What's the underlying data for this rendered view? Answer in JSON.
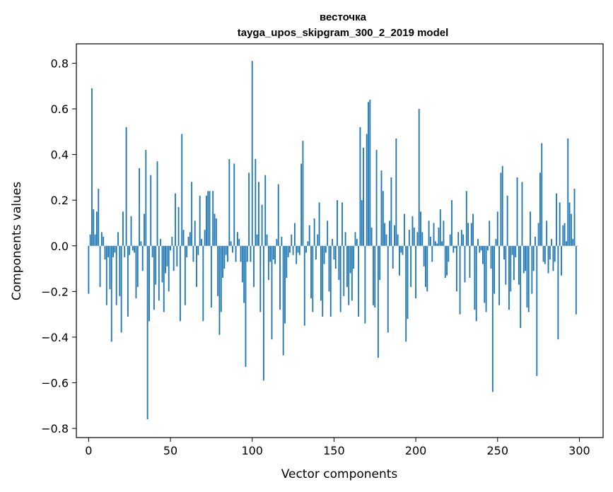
{
  "chart_data": {
    "type": "bar",
    "title": "весточка",
    "subtitle": "tayga_upos_skipgram_300_2_2019 model",
    "xlabel": "Vector components",
    "ylabel": "Components values",
    "xlim": [
      -7.5,
      314.5
    ],
    "ylim": [
      -0.84,
      0.885
    ],
    "xticks": [
      0,
      50,
      100,
      150,
      200,
      250,
      300
    ],
    "xtick_labels": [
      "0",
      "50",
      "100",
      "150",
      "200",
      "250",
      "300"
    ],
    "yticks": [
      -0.8,
      -0.6,
      -0.4,
      -0.2,
      0.0,
      0.2,
      0.4,
      0.6,
      0.8
    ],
    "ytick_labels": [
      "−0.8",
      "−0.6",
      "−0.4",
      "−0.2",
      "0.0",
      "0.2",
      "0.4",
      "0.6",
      "0.8"
    ],
    "grid": false,
    "bar_color": "#1f77b4",
    "series": [
      {
        "values": [
          -0.21,
          0.05,
          0.69,
          0.16,
          0.05,
          0.15,
          0.25,
          -0.18,
          0.06,
          0.04,
          -0.06,
          -0.26,
          -0.05,
          -0.19,
          -0.42,
          -0.05,
          -0.03,
          -0.26,
          0.06,
          -0.22,
          -0.38,
          0.15,
          -0.05,
          0.52,
          -0.31,
          -0.04,
          0.13,
          -0.02,
          -0.03,
          -0.23,
          -0.18,
          0.34,
          0.02,
          -0.11,
          0.14,
          0.42,
          -0.76,
          -0.33,
          0.31,
          -0.05,
          -0.28,
          -0.17,
          0.37,
          -0.24,
          0.03,
          -0.16,
          -0.29,
          -0.12,
          -0.09,
          -0.2,
          -0.02,
          0.04,
          -0.11,
          0.23,
          -0.09,
          0.17,
          -0.33,
          0.49,
          0.07,
          -0.26,
          -0.05,
          0.04,
          0.06,
          0.28,
          -0.07,
          0.11,
          -0.18,
          -0.04,
          0.22,
          0.03,
          -0.33,
          0.07,
          0.22,
          0.24,
          0.24,
          -0.27,
          0.24,
          0.14,
          0.12,
          -0.22,
          -0.39,
          -0.29,
          -0.14,
          -0.1,
          -0.04,
          -0.07,
          0.38,
          0.02,
          -0.03,
          0.36,
          -0.07,
          0.06,
          0.03,
          -0.07,
          -0.16,
          -0.25,
          -0.53,
          -0.07,
          0.32,
          -0.07,
          0.81,
          -0.18,
          0.38,
          0.05,
          0.28,
          -0.29,
          0.18,
          -0.59,
          0.31,
          0.05,
          -0.15,
          -0.07,
          -0.41,
          -0.06,
          -0.08,
          0.03,
          0.27,
          -0.28,
          0.04,
          -0.48,
          -0.34,
          -0.14,
          -0.05,
          -0.03,
          0.05,
          -0.04,
          0.1,
          -0.08,
          -0.03,
          -0.04,
          0.36,
          0.46,
          -0.35,
          -0.03,
          0.02,
          0.09,
          -0.23,
          -0.29,
          0.12,
          -0.06,
          0.05,
          0.19,
          -0.24,
          -0.31,
          -0.08,
          -0.03,
          0.11,
          -0.2,
          -0.31,
          0.03,
          -0.06,
          -0.1,
          0.2,
          -0.15,
          -0.29,
          0.19,
          -0.22,
          0.06,
          -0.18,
          -0.26,
          -0.12,
          -0.24,
          -0.1,
          0.06,
          0.03,
          -0.31,
          0.52,
          0.2,
          0.43,
          -0.34,
          0.49,
          0.63,
          0.64,
          0.08,
          -0.26,
          -0.27,
          0.42,
          -0.49,
          -0.15,
          0.33,
          0.24,
          0.1,
          0.05,
          -0.38,
          0.11,
          0.3,
          -0.1,
          0.09,
          0.47,
          0.05,
          -0.13,
          -0.03,
          -0.04,
          0.14,
          -0.42,
          -0.32,
          0.07,
          -0.18,
          0.13,
          0.08,
          -0.23,
          0.06,
          0.6,
          0.15,
          0.06,
          -0.09,
          -0.18,
          -0.2,
          0.11,
          0.04,
          -0.07,
          0.1,
          0.02,
          0.01,
          0.08,
          0.16,
          0.02,
          0.11,
          -0.14,
          -0.13,
          -0.07,
          0.05,
          0.2,
          -0.03,
          -0.01,
          -0.2,
          0.06,
          -0.3,
          0.07,
          0.05,
          -0.16,
          0.24,
          0.1,
          -0.14,
          0.1,
          0.14,
          -0.28,
          -0.33,
          0.03,
          -0.03,
          -0.02,
          -0.08,
          -0.25,
          -0.29,
          -0.02,
          0.11,
          -0.1,
          -0.64,
          -0.21,
          0.03,
          0.15,
          -0.26,
          0.32,
          0.35,
          -0.06,
          -0.17,
          0.22,
          -0.28,
          -0.2,
          -0.04,
          -0.15,
          -0.05,
          0.3,
          -0.17,
          -0.36,
          0.28,
          -0.12,
          -0.11,
          -0.27,
          -0.29,
          0.15,
          -0.21,
          -0.11,
          0.04,
          -0.57,
          0.1,
          0.32,
          0.45,
          -0.07,
          -0.08,
          0.11,
          -0.12,
          -0.06,
          0.03,
          -0.11,
          -0.07,
          0.23,
          -0.41,
          0.19,
          -0.13,
          0.09,
          0.1,
          0.02,
          0.47,
          0.19,
          0.14,
          0.03,
          0.25,
          -0.3,
          0.0
        ]
      }
    ]
  }
}
